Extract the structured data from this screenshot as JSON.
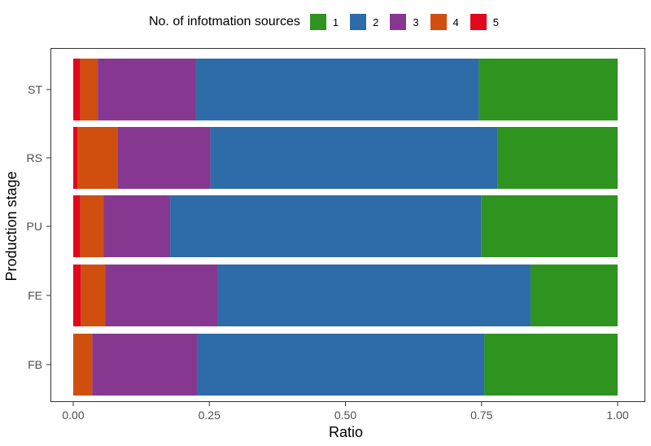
{
  "chart_data": {
    "type": "bar",
    "orientation": "horizontal",
    "stacked": true,
    "xlabel": "Ratio",
    "ylabel": "Production stage",
    "xlim": [
      0,
      1
    ],
    "x_ticks": [
      "0.00",
      "0.25",
      "0.50",
      "0.75",
      "1.00"
    ],
    "categories": [
      "ST",
      "RS",
      "PU",
      "FE",
      "FB"
    ],
    "legend": {
      "title": "No. of infotmation sources",
      "position": "top",
      "entries": [
        "1",
        "2",
        "3",
        "4",
        "5"
      ]
    },
    "stack_order": [
      "5",
      "4",
      "3",
      "2",
      "1"
    ],
    "series": [
      {
        "name": "1",
        "color": "#2e931f",
        "values": [
          0.255,
          0.22,
          0.25,
          0.16,
          0.245
        ]
      },
      {
        "name": "2",
        "color": "#2e6ba9",
        "values": [
          0.52,
          0.528,
          0.572,
          0.574,
          0.527
        ]
      },
      {
        "name": "3",
        "color": "#863891",
        "values": [
          0.18,
          0.171,
          0.122,
          0.207,
          0.193
        ]
      },
      {
        "name": "4",
        "color": "#d04f0f",
        "values": [
          0.032,
          0.073,
          0.043,
          0.045,
          0.035
        ]
      },
      {
        "name": "5",
        "color": "#e0081a",
        "values": [
          0.013,
          0.008,
          0.013,
          0.014,
          0.0
        ]
      }
    ],
    "grid": false,
    "panel_border": true
  }
}
